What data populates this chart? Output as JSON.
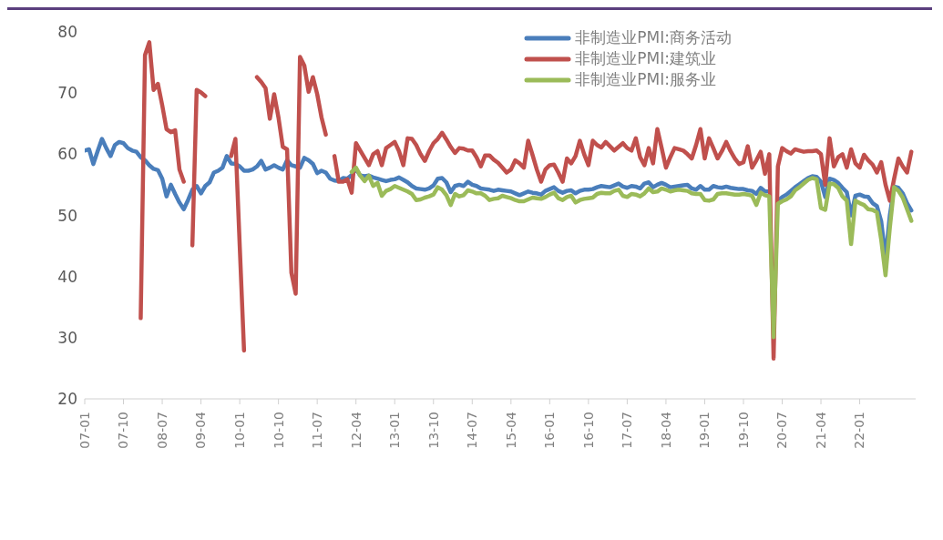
{
  "chart_data": {
    "type": "line",
    "categories": [
      "07-01",
      null,
      null,
      null,
      null,
      null,
      null,
      null,
      null,
      "07-10",
      null,
      null,
      null,
      null,
      null,
      null,
      null,
      null,
      "08-07",
      null,
      null,
      null,
      null,
      null,
      null,
      null,
      null,
      "09-04",
      null,
      null,
      null,
      null,
      null,
      null,
      null,
      null,
      "10-01",
      null,
      null,
      null,
      null,
      null,
      null,
      null,
      null,
      "10-10",
      null,
      null,
      null,
      null,
      null,
      null,
      null,
      null,
      "11-07",
      null,
      null,
      null,
      null,
      null,
      null,
      null,
      null,
      "12-04",
      null,
      null,
      null,
      null,
      null,
      null,
      null,
      null,
      "13-01",
      null,
      null,
      null,
      null,
      null,
      null,
      null,
      null,
      "13-10",
      null,
      null,
      null,
      null,
      null,
      null,
      null,
      null,
      "14-07",
      null,
      null,
      null,
      null,
      null,
      null,
      null,
      null,
      "15-04",
      null,
      null,
      null,
      null,
      null,
      null,
      null,
      null,
      "16-01",
      null,
      null,
      null,
      null,
      null,
      null,
      null,
      null,
      "16-10",
      null,
      null,
      null,
      null,
      null,
      null,
      null,
      null,
      "17-07",
      null,
      null,
      null,
      null,
      null,
      null,
      null,
      null,
      "18-04",
      null,
      null,
      null,
      null,
      null,
      null,
      null,
      null,
      "19-01",
      null,
      null,
      null,
      null,
      null,
      null,
      null,
      null,
      "19-10",
      null,
      null,
      null,
      null,
      null,
      null,
      null,
      null,
      "20-07",
      null,
      null,
      null,
      null,
      null,
      null,
      null,
      null,
      "21-04",
      null,
      null,
      null,
      null,
      null,
      null,
      null,
      null,
      "22-01",
      null,
      null,
      null,
      null,
      null,
      null,
      null,
      null,
      null,
      null,
      null,
      null
    ],
    "series": [
      {
        "name": "非制造业PMI:商务活动",
        "color": "#4a7ebb",
        "values": [
          60.6,
          60.8,
          58.4,
          60.5,
          62.5,
          61,
          59.7,
          61.5,
          62,
          61.8,
          61,
          60.6,
          60.4,
          59.5,
          59,
          58.2,
          57.6,
          57.4,
          56,
          53.1,
          55,
          53.5,
          52.1,
          51,
          52.5,
          54.2,
          54.8,
          53.6,
          54.8,
          55.4,
          57,
          57.3,
          57.8,
          59.7,
          58.5,
          58.4,
          58,
          57.3,
          57.3,
          57.5,
          58,
          58.9,
          57.5,
          57.8,
          58.2,
          57.8,
          57.5,
          59,
          58.2,
          58,
          57.8,
          59.4,
          59,
          58.4,
          56.9,
          57.3,
          57,
          56,
          55.7,
          55.6,
          56.1,
          56,
          56.6,
          57.6,
          56.5,
          56.4,
          56.5,
          56.2,
          56,
          55.8,
          55.6,
          55.8,
          55.9,
          56.2,
          55.8,
          55.4,
          54.8,
          54.4,
          54.3,
          54.2,
          54.4,
          54.9,
          56,
          56.1,
          55.4,
          53.8,
          54.8,
          55,
          54.8,
          55.5,
          55,
          54.8,
          54.4,
          54.3,
          54.2,
          54,
          54.2,
          54.1,
          54,
          53.9,
          53.6,
          53.3,
          53.6,
          53.9,
          53.7,
          53.6,
          53.4,
          54,
          54.3,
          54.6,
          54,
          53.7,
          54,
          54.1,
          53.6,
          54,
          54.2,
          54.2,
          54.3,
          54.6,
          54.8,
          54.7,
          54.6,
          54.9,
          55.2,
          54.7,
          54.5,
          54.8,
          54.7,
          54.4,
          55.2,
          55.4,
          54.6,
          55,
          55.3,
          55,
          54.6,
          54.7,
          54.8,
          54.9,
          55,
          54.4,
          54.2,
          54.8,
          54.2,
          54.2,
          54.8,
          54.6,
          54.5,
          54.7,
          54.5,
          54.4,
          54.3,
          54.3,
          54.1,
          54,
          53.5,
          54.5,
          53.9,
          53.9,
          null,
          52.4,
          53,
          53.4,
          54,
          54.6,
          55.1,
          55.6,
          56.1,
          56.4,
          56.3,
          55.5,
          53,
          56,
          55.8,
          55.3,
          54.5,
          53.8,
          50,
          53.2,
          53.4,
          53.1,
          53,
          52,
          51.5,
          49,
          43,
          50,
          54.7,
          54.5,
          53.6,
          52,
          50.8
        ]
      },
      {
        "name": "非制造业PMI:建筑业",
        "color": "#c0504d",
        "values": [
          null,
          null,
          null,
          null,
          null,
          null,
          null,
          null,
          null,
          null,
          null,
          null,
          null,
          33.2,
          76.2,
          78.3,
          70.5,
          71.5,
          68,
          64.1,
          63.6,
          63.9,
          57.5,
          55.5,
          null,
          45.1,
          70.5,
          70.1,
          69.5,
          null,
          null,
          null,
          null,
          null,
          59.7,
          62.5,
          45,
          27.9,
          null,
          null,
          72.6,
          71.8,
          70.8,
          65.8,
          69.8,
          66,
          61.2,
          60.8,
          40.6,
          37.2,
          75.9,
          74.5,
          70.2,
          72.6,
          69.8,
          66,
          63.2,
          null,
          59.7,
          55.5,
          55.5,
          55.9,
          53.7,
          61.8,
          60.6,
          59.4,
          58.2,
          60,
          60.5,
          58.2,
          61,
          61.5,
          62,
          60.5,
          58.2,
          62.6,
          62.5,
          61.5,
          60,
          58.9,
          60.5,
          61.8,
          62.5,
          63.5,
          62.4,
          61.2,
          60.2,
          61,
          60.9,
          60.6,
          60.6,
          59.5,
          58,
          59.8,
          59.8,
          59.1,
          58.6,
          57.8,
          57,
          57.5,
          59,
          58.5,
          57.8,
          62.2,
          59.9,
          57.5,
          55.5,
          57.5,
          58.2,
          58.3,
          57,
          55.5,
          59.3,
          58.5,
          59.7,
          62.2,
          60,
          58.2,
          62.2,
          61.5,
          61.1,
          62,
          61.3,
          60.6,
          61.2,
          61.8,
          61,
          60.6,
          62.6,
          59.5,
          58.2,
          61,
          58.5,
          64.1,
          61,
          57.8,
          59.5,
          61,
          60.8,
          60.6,
          60,
          59.3,
          61.5,
          64.1,
          59.3,
          62.6,
          61,
          59.3,
          60.5,
          62,
          60.5,
          59.3,
          58.4,
          58.7,
          61.3,
          57.8,
          59,
          60.4,
          56.8,
          60,
          26.6,
          58,
          61,
          60.5,
          60.1,
          60.8,
          60.6,
          60.4,
          60.5,
          60.5,
          60.6,
          60,
          55,
          62.6,
          58,
          59.5,
          60,
          57.8,
          60.8,
          58.5,
          57.8,
          59.9,
          59,
          58.3,
          57,
          58.7,
          55,
          52.4,
          56,
          59.3,
          58,
          57,
          60.4
        ]
      },
      {
        "name": "非制造业PMI:服务业",
        "color": "#9bbb59",
        "values": [
          null,
          null,
          null,
          null,
          null,
          null,
          null,
          null,
          null,
          null,
          null,
          null,
          null,
          null,
          null,
          null,
          null,
          null,
          null,
          null,
          null,
          null,
          null,
          null,
          null,
          null,
          null,
          null,
          null,
          null,
          null,
          null,
          null,
          null,
          null,
          null,
          null,
          null,
          null,
          null,
          null,
          null,
          null,
          null,
          null,
          null,
          null,
          null,
          null,
          null,
          null,
          null,
          null,
          null,
          null,
          null,
          null,
          null,
          null,
          null,
          null,
          null,
          57.1,
          57.8,
          56.5,
          55.6,
          56.5,
          54.8,
          55.3,
          53.2,
          54,
          54.3,
          54.8,
          54.5,
          54.2,
          53.9,
          53.5,
          52.5,
          52.6,
          52.9,
          53.1,
          53.4,
          54.6,
          54.2,
          53.3,
          51.7,
          53.5,
          53.1,
          53.3,
          54.1,
          53.9,
          53.6,
          53.6,
          53.2,
          52.5,
          52.7,
          52.8,
          53.2,
          53,
          52.8,
          52.5,
          52.3,
          52.3,
          52.6,
          52.9,
          52.8,
          52.7,
          53,
          53.4,
          53.7,
          52.8,
          52.5,
          53,
          53.2,
          52.1,
          52.5,
          52.7,
          52.8,
          52.9,
          53.5,
          53.7,
          53.6,
          53.6,
          54,
          54.2,
          53.2,
          53,
          53.5,
          53.4,
          53.1,
          53.6,
          54.4,
          53.8,
          53.9,
          54.4,
          54.2,
          53.9,
          54.1,
          54.2,
          54.1,
          54,
          53.6,
          53.5,
          53.5,
          52.5,
          52.4,
          52.6,
          53.5,
          53.6,
          53.6,
          53.5,
          53.4,
          53.4,
          53.5,
          53.4,
          53.2,
          51.7,
          53.7,
          53.3,
          53.1,
          30.1,
          51.9,
          52.3,
          52.6,
          53.1,
          54.1,
          54.6,
          55.2,
          55.8,
          56.1,
          55.9,
          51.2,
          50.9,
          55.2,
          55.1,
          54.5,
          53.1,
          52.4,
          45.3,
          52.4,
          52,
          51.7,
          51,
          50.9,
          50.5,
          46,
          40.2,
          48,
          54.6,
          54,
          52.9,
          51,
          49.1
        ]
      }
    ],
    "ylim": [
      20,
      80
    ],
    "yticks": [
      20,
      30,
      40,
      50,
      60,
      70,
      80
    ],
    "legend": "top right"
  }
}
